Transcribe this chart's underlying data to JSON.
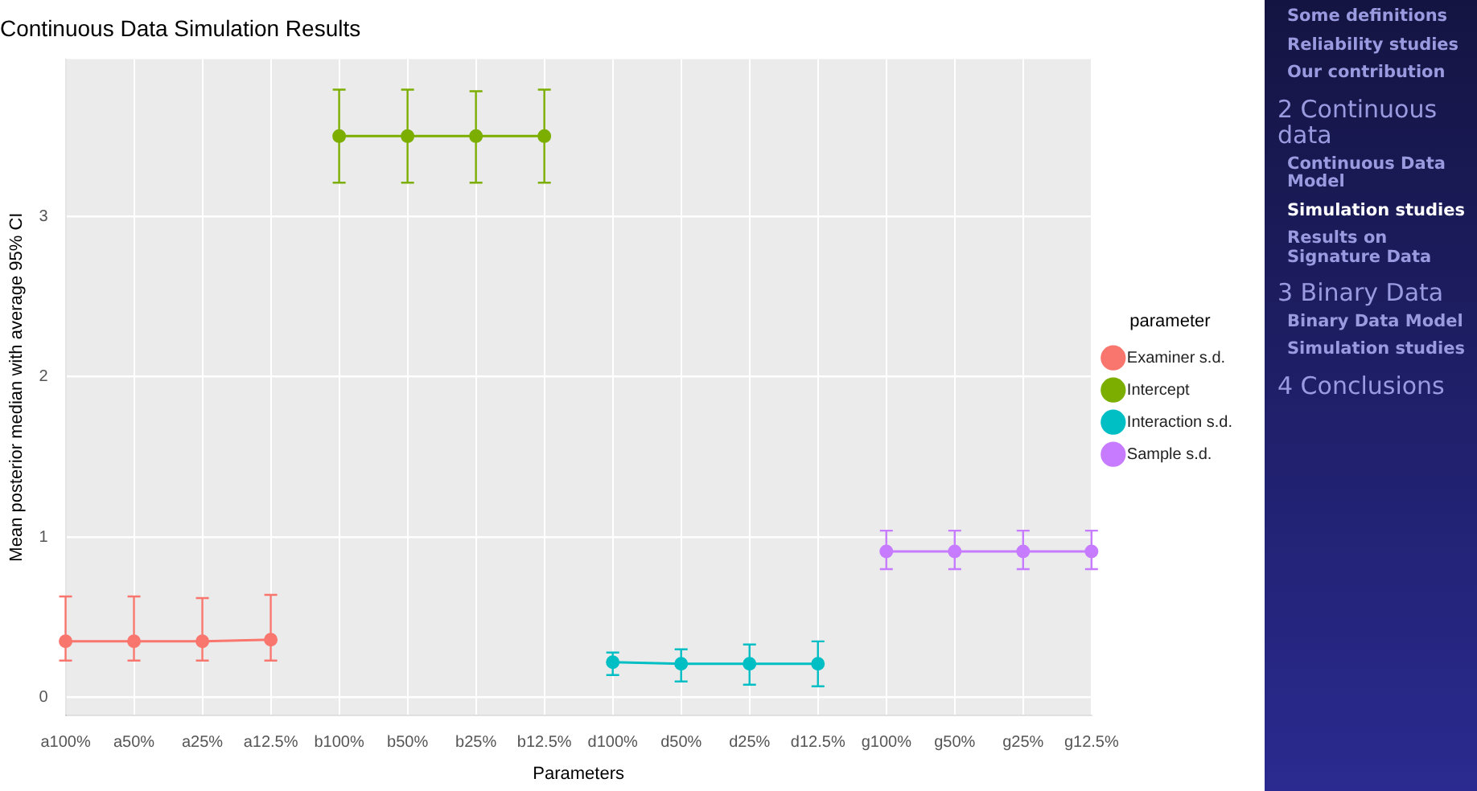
{
  "chart_data": {
    "type": "line",
    "title": "Continuous Data Simulation Results",
    "xlabel": "Parameters",
    "ylabel": "Mean posterior median with average 95% CI",
    "legend_title": "parameter",
    "categories": [
      "a100%",
      "a50%",
      "a25%",
      "a12.5%",
      "b100%",
      "b50%",
      "b25%",
      "b12.5%",
      "d100%",
      "d50%",
      "d25%",
      "d12.5%",
      "g100%",
      "g50%",
      "g25%",
      "g12.5%"
    ],
    "series": [
      {
        "name": "Examiner s.d.",
        "color": "#f8766d",
        "values": [
          0.35,
          0.35,
          0.35,
          0.36,
          null,
          null,
          null,
          null,
          null,
          null,
          null,
          null,
          null,
          null,
          null,
          null
        ],
        "errors": [
          [
            0.23,
            0.63
          ],
          [
            0.23,
            0.63
          ],
          [
            0.23,
            0.62
          ],
          [
            0.23,
            0.64
          ],
          null,
          null,
          null,
          null,
          null,
          null,
          null,
          null,
          null,
          null,
          null,
          null
        ]
      },
      {
        "name": "Intercept",
        "color": "#7cae00",
        "values": [
          null,
          null,
          null,
          null,
          3.5,
          3.5,
          3.5,
          3.5,
          null,
          null,
          null,
          null,
          null,
          null,
          null,
          null
        ],
        "errors": [
          null,
          null,
          null,
          null,
          [
            3.21,
            3.79
          ],
          [
            3.21,
            3.79
          ],
          [
            3.21,
            3.78
          ],
          [
            3.21,
            3.79
          ],
          null,
          null,
          null,
          null,
          null,
          null,
          null,
          null
        ]
      },
      {
        "name": "Interaction s.d.",
        "color": "#00bfc4",
        "values": [
          null,
          null,
          null,
          null,
          null,
          null,
          null,
          null,
          0.22,
          0.21,
          0.21,
          0.21,
          null,
          null,
          null,
          null
        ],
        "errors": [
          null,
          null,
          null,
          null,
          null,
          null,
          null,
          null,
          [
            0.14,
            0.28
          ],
          [
            0.1,
            0.3
          ],
          [
            0.08,
            0.33
          ],
          [
            0.07,
            0.35
          ],
          null,
          null,
          null,
          null
        ]
      },
      {
        "name": "Sample s.d.",
        "color": "#c77cff",
        "values": [
          null,
          null,
          null,
          null,
          null,
          null,
          null,
          null,
          null,
          null,
          null,
          null,
          0.91,
          0.91,
          0.91,
          0.91
        ],
        "errors": [
          null,
          null,
          null,
          null,
          null,
          null,
          null,
          null,
          null,
          null,
          null,
          null,
          [
            0.8,
            1.04
          ],
          [
            0.8,
            1.04
          ],
          [
            0.8,
            1.04
          ],
          [
            0.8,
            1.04
          ]
        ]
      }
    ],
    "ylim": [
      -0.11,
      3.98
    ],
    "yticks": [
      0,
      1,
      2,
      3
    ],
    "grid": true,
    "legend": "right",
    "marker": "circle",
    "line_style": "solid",
    "annotations": [
      "Some definitions",
      "Reliability studies",
      "Our contribution",
      "2 Continuous data",
      "Continuous Data Model",
      "Simulation studies",
      "Results on Signature Data",
      "3 Binary Data",
      "Binary Data Model",
      "Simulation studies",
      "4 Conclusions"
    ]
  }
}
